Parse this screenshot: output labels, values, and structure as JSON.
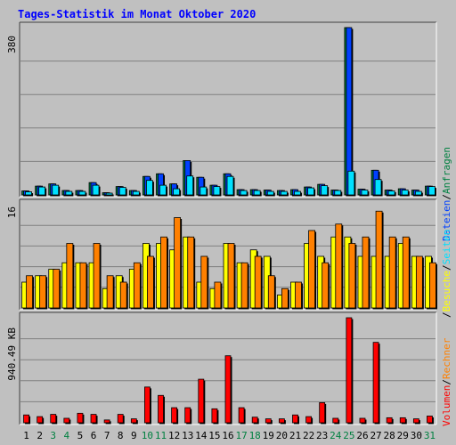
{
  "title": "Tages-Statistik im Monat Oktober 2020",
  "colors": {
    "background": "#c0c0c0",
    "plot_background": "#c0c0c0",
    "grid": "#808080",
    "hits": "#008040",
    "files": "#0040ff",
    "pages": "#00e0ff",
    "visits": "#ffff00",
    "sites": "#ff8000",
    "kbytes": "#ff0000",
    "weekday_label": "#000000",
    "weekend_label": "#008040",
    "title": "#0000ff"
  },
  "chart_data": [
    {
      "type": "bar",
      "panel": "top",
      "scale_label": "380",
      "x": [
        1,
        2,
        3,
        4,
        5,
        6,
        7,
        8,
        9,
        10,
        11,
        12,
        13,
        14,
        15,
        16,
        17,
        18,
        19,
        20,
        21,
        22,
        23,
        24,
        25,
        26,
        27,
        28,
        29,
        30,
        31
      ],
      "weekend_days": [
        3,
        4,
        10,
        11,
        17,
        18,
        24,
        25,
        31
      ],
      "series": [
        {
          "name": "Anfragen",
          "values": [
            9,
            20,
            25,
            10,
            10,
            28,
            5,
            19,
            10,
            42,
            48,
            25,
            78,
            40,
            22,
            48,
            12,
            12,
            11,
            10,
            12,
            18,
            24,
            11,
            380,
            13,
            56,
            11,
            14,
            11,
            20
          ]
        },
        {
          "name": "Dateien",
          "values": [
            9,
            20,
            25,
            10,
            10,
            28,
            5,
            19,
            10,
            42,
            48,
            25,
            78,
            40,
            22,
            48,
            12,
            12,
            11,
            10,
            12,
            18,
            24,
            11,
            380,
            13,
            56,
            11,
            14,
            11,
            20
          ]
        },
        {
          "name": "Seiten",
          "values": [
            7,
            18,
            22,
            8,
            8,
            22,
            4,
            17,
            8,
            33,
            22,
            14,
            43,
            18,
            19,
            42,
            10,
            10,
            8,
            8,
            8,
            16,
            21,
            10,
            54,
            11,
            35,
            9,
            11,
            8,
            19
          ]
        }
      ]
    },
    {
      "type": "bar",
      "panel": "middle",
      "scale_label": "16",
      "x": [
        1,
        2,
        3,
        4,
        5,
        6,
        7,
        8,
        9,
        10,
        11,
        12,
        13,
        14,
        15,
        16,
        17,
        18,
        19,
        20,
        21,
        22,
        23,
        24,
        25,
        26,
        27,
        28,
        29,
        30,
        31
      ],
      "series": [
        {
          "name": "Besuche",
          "values": [
            4,
            5,
            6,
            7,
            7,
            7,
            3,
            5,
            6,
            10,
            10,
            9,
            11,
            4,
            3,
            10,
            7,
            9,
            8,
            2,
            4,
            10,
            8,
            11,
            11,
            8,
            8,
            8,
            10,
            8,
            8
          ]
        },
        {
          "name": "Rechner",
          "values": [
            5,
            5,
            6,
            10,
            7,
            10,
            5,
            4,
            7,
            8,
            11,
            14,
            11,
            8,
            4,
            10,
            7,
            8,
            5,
            3,
            4,
            12,
            7,
            13,
            10,
            11,
            15,
            11,
            11,
            8,
            7
          ]
        }
      ]
    },
    {
      "type": "bar",
      "panel": "bottom",
      "scale_label": "940.49 KB",
      "x": [
        1,
        2,
        3,
        4,
        5,
        6,
        7,
        8,
        9,
        10,
        11,
        12,
        13,
        14,
        15,
        16,
        17,
        18,
        19,
        20,
        21,
        22,
        23,
        24,
        25,
        26,
        27,
        28,
        29,
        30,
        31
      ],
      "series": [
        {
          "name": "Volumen",
          "values": [
            70,
            55,
            75,
            40,
            85,
            75,
            25,
            75,
            35,
            320,
            245,
            135,
            135,
            390,
            125,
            600,
            135,
            50,
            35,
            35,
            70,
            55,
            180,
            40,
            940.49,
            40,
            720,
            45,
            45,
            35,
            60
          ]
        }
      ]
    }
  ],
  "legend": {
    "top": [
      {
        "label": "Dateien",
        "sep_before": ""
      },
      {
        "label": "Anfragen",
        "sep_before": "/"
      }
    ],
    "middle": [
      {
        "label": "Besuche",
        "sep_before": "/"
      },
      {
        "label": "Seiten",
        "sep_before": "/"
      }
    ],
    "bottom": [
      {
        "label": "Volumen",
        "sep_before": ""
      },
      {
        "label": "Rechner",
        "sep_before": "/"
      }
    ]
  }
}
